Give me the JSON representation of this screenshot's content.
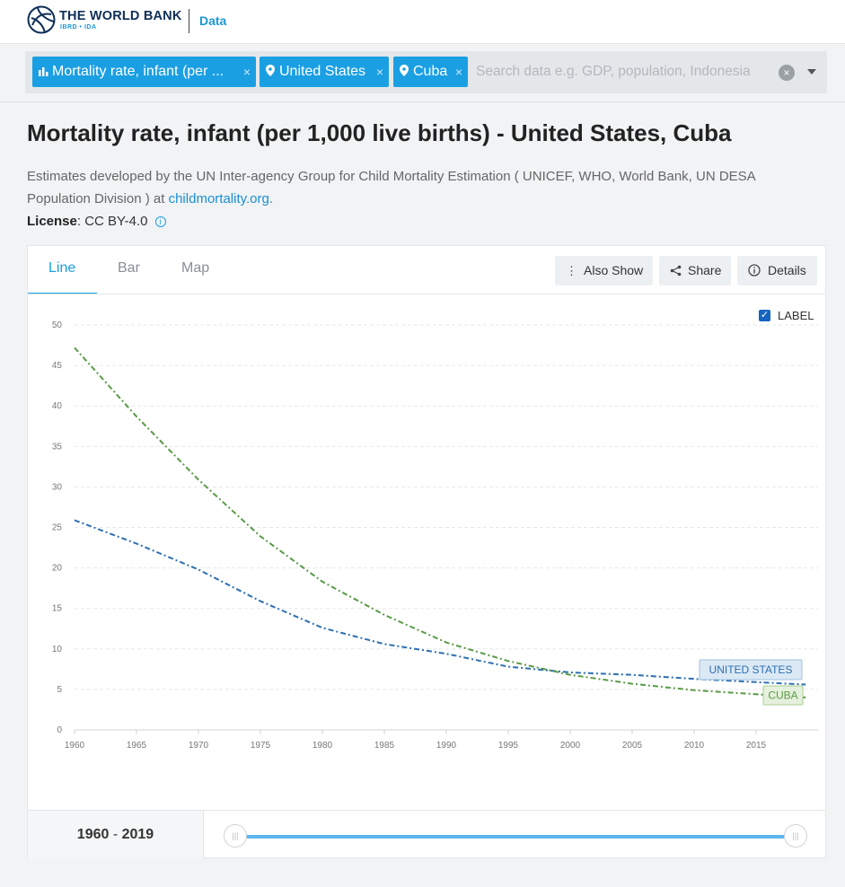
{
  "header": {
    "brand": "THE WORLD BANK",
    "brand_sub": "IBRD • IDA",
    "nav_link": "Data"
  },
  "filters": {
    "chips": [
      {
        "icon": "bar-chart-icon",
        "label": "Mortality rate, infant (per ...",
        "remove": "×"
      },
      {
        "icon": "map-pin-icon",
        "label": "United States",
        "remove": "×"
      },
      {
        "icon": "map-pin-icon",
        "label": "Cuba",
        "remove": "×"
      }
    ],
    "search_placeholder": "Search data e.g. GDP, population, Indonesia",
    "clear": "×"
  },
  "page": {
    "title": "Mortality rate, infant (per 1,000 live births) - United States, Cuba",
    "description": "Estimates developed by the UN Inter-agency Group for Child Mortality Estimation ( UNICEF, WHO, World Bank, UN DESA Population Division ) at",
    "source_link": "childmortality.org.",
    "license_label": "License",
    "license_value": ": CC BY-4.0",
    "license_info": "i"
  },
  "tabs": [
    {
      "label": "Line",
      "active": true
    },
    {
      "label": "Bar",
      "active": false
    },
    {
      "label": "Map",
      "active": false
    }
  ],
  "toolbar": {
    "also_show": "Also Show",
    "share": "Share",
    "details": "Details"
  },
  "label_toggle": {
    "checked": true,
    "text": "LABEL",
    "check": "✓"
  },
  "range": {
    "start": "1960",
    "sep": " - ",
    "end": "2019",
    "handle_glyph": "|||"
  },
  "chart_data": {
    "type": "line",
    "title": "",
    "xlabel": "",
    "ylabel": "",
    "xlim": [
      1960,
      2019
    ],
    "ylim": [
      0,
      50
    ],
    "yticks": [
      "0",
      "5",
      "10",
      "15",
      "20",
      "25",
      "30",
      "35",
      "40",
      "45",
      "50"
    ],
    "xticks": [
      "1960",
      "1965",
      "1970",
      "1975",
      "1980",
      "1985",
      "1990",
      "1995",
      "2000",
      "2005",
      "2010",
      "2015"
    ],
    "grid": true,
    "series": [
      {
        "name": "UNITED STATES",
        "color": "#2e6fb0",
        "x": [
          1960,
          1965,
          1970,
          1975,
          1980,
          1985,
          1990,
          1995,
          2000,
          2005,
          2010,
          2015,
          2019
        ],
        "y": [
          25.9,
          23.0,
          19.8,
          15.9,
          12.6,
          10.6,
          9.4,
          7.8,
          7.1,
          6.8,
          6.3,
          5.9,
          5.6
        ]
      },
      {
        "name": "CUBA",
        "color": "#5a9a46",
        "x": [
          1960,
          1965,
          1970,
          1975,
          1980,
          1985,
          1990,
          1995,
          2000,
          2005,
          2010,
          2015,
          2019
        ],
        "y": [
          47.2,
          38.7,
          30.9,
          23.9,
          18.3,
          14.2,
          10.8,
          8.5,
          6.8,
          5.7,
          4.9,
          4.4,
          4.0
        ]
      }
    ]
  }
}
